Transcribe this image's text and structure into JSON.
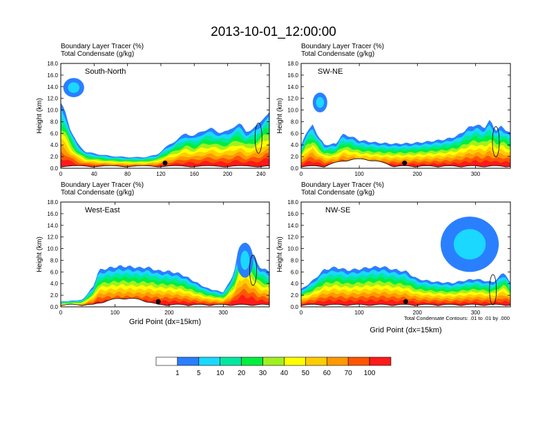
{
  "figure_title": "2013-10-01_12:00:00",
  "note": "Total Condensate Contours: .01 to .01 by .000",
  "colorbar": {
    "colors": [
      "#ffffff",
      "#2a7fff",
      "#1ad8ff",
      "#00e8a0",
      "#00ee40",
      "#a0f020",
      "#ffff00",
      "#ffcc00",
      "#ff9900",
      "#ff5500",
      "#ff1a1a"
    ],
    "ticks": [
      "1",
      "5",
      "10",
      "20",
      "30",
      "40",
      "50",
      "60",
      "70",
      "100"
    ]
  },
  "chart_data": [
    {
      "type": "heatmap",
      "panel_label": "South-North",
      "title_line1": "Boundary Layer Tracer   (%)",
      "title_line2": "Total Condensate   (g/kg)",
      "ylabel": "Height (km)",
      "xlabel": "",
      "xlim": [
        0,
        250
      ],
      "ylim": [
        0,
        18
      ],
      "xticks": [
        "0",
        "40",
        "80",
        "120",
        "160",
        "200",
        "240"
      ],
      "yticks": [
        "0.0",
        "2.0",
        "4.0",
        "6.0",
        "8.0",
        "10.0",
        "12.0",
        "14.0",
        "16.0",
        "18.0"
      ],
      "marker_x": 125,
      "tracer_top_km": [
        [
          0,
          11
        ],
        [
          6,
          9.5
        ],
        [
          12,
          6.5
        ],
        [
          20,
          4.2
        ],
        [
          30,
          2.8
        ],
        [
          45,
          2.4
        ],
        [
          60,
          2.1
        ],
        [
          80,
          1.9
        ],
        [
          100,
          1.9
        ],
        [
          115,
          2.3
        ],
        [
          125,
          3.5
        ],
        [
          135,
          4.5
        ],
        [
          145,
          5.5
        ],
        [
          150,
          6
        ],
        [
          160,
          5.5
        ],
        [
          170,
          6.5
        ],
        [
          180,
          6.8
        ],
        [
          190,
          6.2
        ],
        [
          200,
          6.3
        ],
        [
          210,
          7.5
        ],
        [
          215,
          7.6
        ],
        [
          222,
          6.3
        ],
        [
          230,
          6.8
        ],
        [
          237,
          7.4
        ],
        [
          244,
          9
        ],
        [
          250,
          9.5
        ]
      ],
      "cloud_blob": {
        "x": [
          3,
          28
        ],
        "height_km": [
          12.2,
          15.5
        ]
      }
    },
    {
      "type": "heatmap",
      "panel_label": "SW-NE",
      "title_line1": "Boundary Layer Tracer   (%)",
      "title_line2": "Total Condensate   (g/kg)",
      "ylabel": "Height (km)",
      "xlabel": "",
      "xlim": [
        0,
        360
      ],
      "ylim": [
        0,
        18
      ],
      "xticks": [
        "0",
        "100",
        "200",
        "300"
      ],
      "yticks": [
        "0.0",
        "2.0",
        "4.0",
        "6.0",
        "8.0",
        "10.0",
        "12.0",
        "14.0",
        "16.0",
        "18.0"
      ],
      "marker_x": 178,
      "tracer_top_km": [
        [
          0,
          3.8
        ],
        [
          10,
          6.5
        ],
        [
          20,
          7.3
        ],
        [
          30,
          5.5
        ],
        [
          40,
          4
        ],
        [
          60,
          4.2
        ],
        [
          70,
          5.8
        ],
        [
          85,
          5.5
        ],
        [
          100,
          4.8
        ],
        [
          130,
          4.4
        ],
        [
          160,
          4.2
        ],
        [
          190,
          4.3
        ],
        [
          220,
          4.6
        ],
        [
          250,
          5
        ],
        [
          270,
          5.6
        ],
        [
          285,
          6.8
        ],
        [
          300,
          7.5
        ],
        [
          315,
          7
        ],
        [
          325,
          8.2
        ],
        [
          335,
          6.5
        ],
        [
          345,
          7.2
        ],
        [
          360,
          6
        ]
      ],
      "cloud_blob": {
        "x": [
          20,
          45
        ],
        "height_km": [
          9.6,
          13
        ]
      }
    },
    {
      "type": "heatmap",
      "panel_label": "West-East",
      "title_line1": "Boundary Layer Tracer   (%)",
      "title_line2": "Total Condensate   (g/kg)",
      "ylabel": "Height (km)",
      "xlabel": "Grid Point (dx=15km)",
      "xlim": [
        0,
        385
      ],
      "ylim": [
        0,
        18
      ],
      "xticks": [
        "0",
        "100",
        "200",
        "300"
      ],
      "yticks": [
        "0.0",
        "2.0",
        "4.0",
        "6.0",
        "8.0",
        "10.0",
        "12.0",
        "14.0",
        "16.0",
        "18.0"
      ],
      "marker_x": 180,
      "tracer_top_km": [
        [
          0,
          0.9
        ],
        [
          25,
          1.1
        ],
        [
          40,
          1.2
        ],
        [
          60,
          3.5
        ],
        [
          70,
          6.3
        ],
        [
          90,
          6.7
        ],
        [
          110,
          7
        ],
        [
          130,
          6.9
        ],
        [
          145,
          6.7
        ],
        [
          160,
          6.8
        ],
        [
          180,
          6.2
        ],
        [
          200,
          6.1
        ],
        [
          220,
          5.7
        ],
        [
          235,
          5
        ],
        [
          250,
          4.2
        ],
        [
          270,
          3.2
        ],
        [
          300,
          2.5
        ],
        [
          310,
          4
        ],
        [
          320,
          6
        ],
        [
          330,
          10.5
        ],
        [
          340,
          11
        ],
        [
          355,
          9
        ],
        [
          365,
          7
        ],
        [
          385,
          6
        ]
      ],
      "cloud_blob": {
        "x": [
          325,
          355
        ],
        "height_km": [
          5,
          11
        ]
      }
    },
    {
      "type": "heatmap",
      "panel_label": "NW-SE",
      "title_line1": "Boundary Layer Tracer   (%)",
      "title_line2": "Total Condensate   (g/kg)",
      "ylabel": "Height (km)",
      "xlabel": "Grid Point (dx=15km)",
      "xlim": [
        0,
        360
      ],
      "ylim": [
        0,
        18
      ],
      "xticks": [
        "0",
        "100",
        "200",
        "300"
      ],
      "yticks": [
        "0.0",
        "2.0",
        "4.0",
        "6.0",
        "8.0",
        "10.0",
        "12.0",
        "14.0",
        "16.0",
        "18.0"
      ],
      "marker_x": 180,
      "tracer_top_km": [
        [
          0,
          3
        ],
        [
          20,
          4.5
        ],
        [
          40,
          6.4
        ],
        [
          60,
          6.8
        ],
        [
          80,
          6.3
        ],
        [
          100,
          6.5
        ],
        [
          120,
          6.8
        ],
        [
          140,
          6.9
        ],
        [
          160,
          6.4
        ],
        [
          180,
          6.1
        ],
        [
          200,
          4.8
        ],
        [
          230,
          4.3
        ],
        [
          260,
          4.1
        ],
        [
          280,
          4.5
        ],
        [
          300,
          4.8
        ],
        [
          330,
          4.2
        ],
        [
          350,
          6
        ],
        [
          360,
          4
        ]
      ],
      "cloud_blob": {
        "x": [
          240,
          340
        ],
        "height_km": [
          6,
          15.5
        ]
      }
    }
  ]
}
